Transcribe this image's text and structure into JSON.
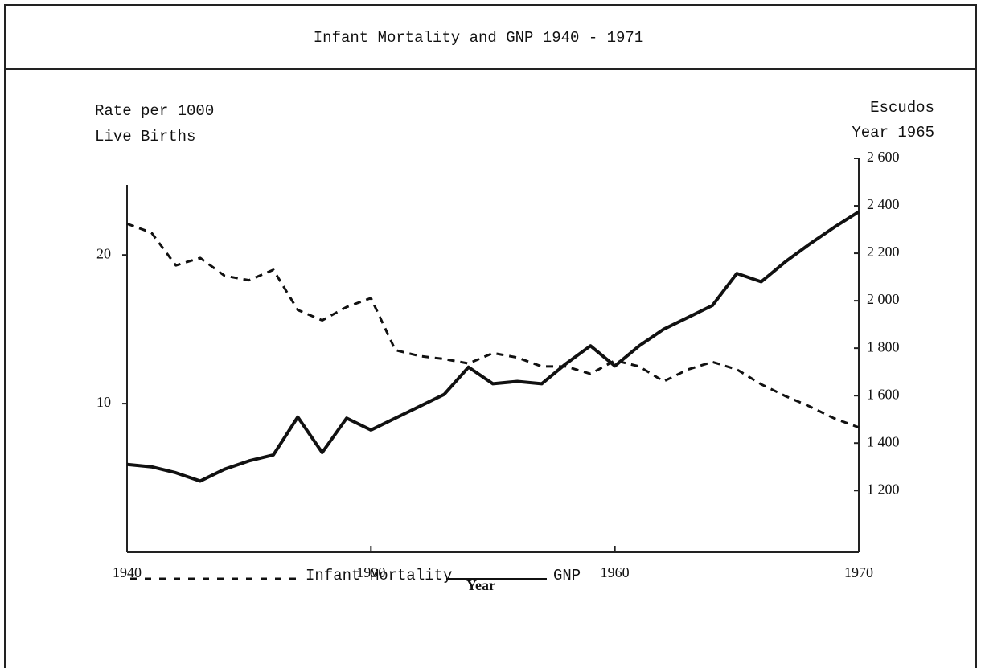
{
  "chart_data": {
    "type": "line",
    "title": "Infant Mortality and GNP 1940 - 1971",
    "y_label": [
      "Rate per 1000",
      "Live Births"
    ],
    "y2_label": [
      "Escudos",
      "Year 1965"
    ],
    "x_label": "Year",
    "x": [
      1940,
      1941,
      1942,
      1943,
      1944,
      1945,
      1946,
      1947,
      1948,
      1949,
      1950,
      1951,
      1952,
      1953,
      1954,
      1955,
      1956,
      1957,
      1958,
      1959,
      1960,
      1961,
      1962,
      1963,
      1964,
      1965,
      1966,
      1967,
      1968,
      1969,
      1970
    ],
    "xlim": [
      1940,
      1970
    ],
    "xticks": [
      1940,
      1950,
      1960,
      1970
    ],
    "ylim": [
      0,
      26.5
    ],
    "yticks": [
      10,
      20
    ],
    "y2lim": [
      940,
      2600
    ],
    "y2ticks": [
      {
        "value": 1200,
        "label": "1 200"
      },
      {
        "value": 1400,
        "label": "1 400"
      },
      {
        "value": 1600,
        "label": "1 600"
      },
      {
        "value": 1800,
        "label": "1 800"
      },
      {
        "value": 2000,
        "label": "2 000"
      },
      {
        "value": 2200,
        "label": "2 200"
      },
      {
        "value": 2400,
        "label": "2 400"
      },
      {
        "value": 2600,
        "label": "2 600"
      }
    ],
    "series": [
      {
        "name": "Infant Mortality",
        "color": "#111111",
        "line_style": "dashed",
        "values": [
          22.1,
          21.5,
          19.3,
          19.8,
          18.6,
          18.3,
          19.0,
          16.3,
          15.6,
          16.5,
          17.1,
          13.6,
          13.2,
          13.0,
          12.7,
          13.4,
          13.1,
          12.5,
          12.5,
          12.0,
          12.9,
          12.5,
          11.5,
          12.3,
          12.8,
          12.3,
          11.3,
          10.5,
          9.8,
          9.0,
          8.4
        ]
      },
      {
        "name": "GNP",
        "color": "#111111",
        "line_style": "solid",
        "axis": "y2",
        "values": [
          1310,
          1300,
          1275,
          1240,
          1290,
          1325,
          1350,
          1510,
          1360,
          1505,
          1455,
          1505,
          1555,
          1605,
          1720,
          1650,
          1660,
          1650,
          1735,
          1810,
          1725,
          1810,
          1880,
          1930,
          1980,
          2115,
          2080,
          2165,
          2240,
          2310,
          2375
        ]
      }
    ]
  }
}
